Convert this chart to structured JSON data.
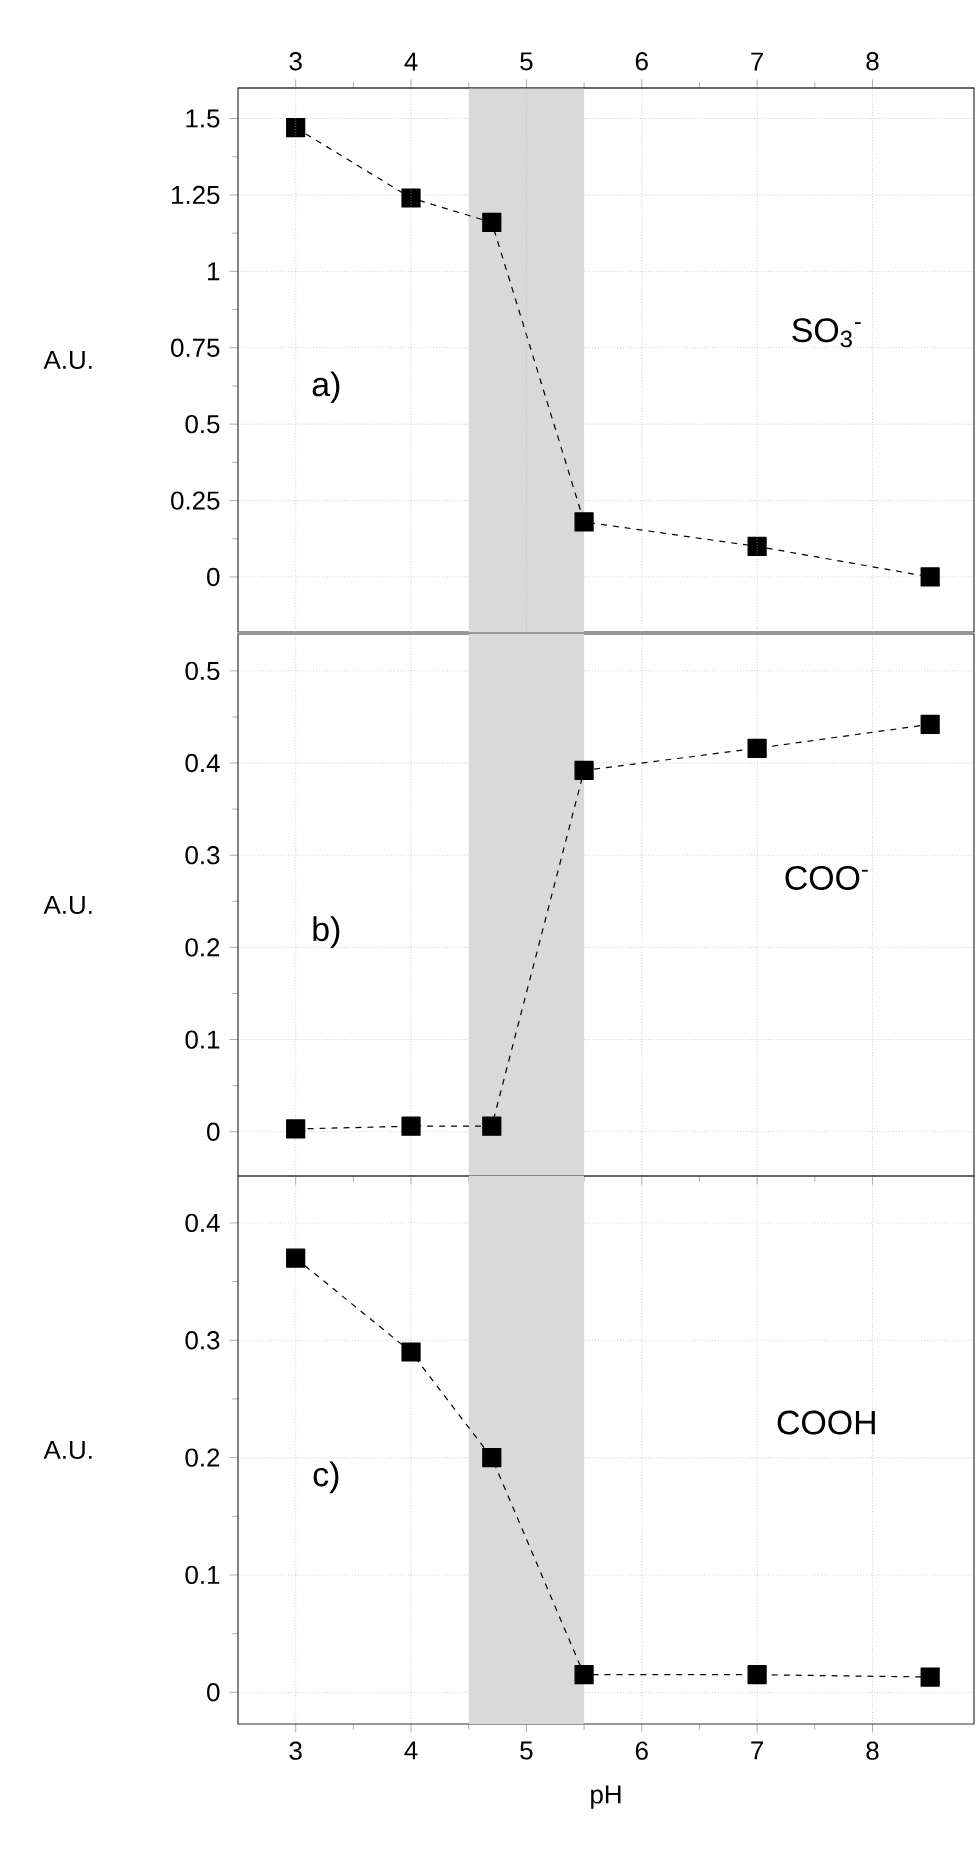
{
  "chart_data": [
    {
      "type": "line",
      "ylabel": "A.U.",
      "x": [
        3,
        4,
        4.7,
        5.5,
        7,
        8.5
      ],
      "values": [
        1.47,
        1.24,
        1.16,
        0.18,
        0.1,
        0
      ],
      "color": "#000000",
      "marker": "square",
      "line_style": "dashed",
      "grid": true,
      "xlim": [
        2.5,
        8.88
      ],
      "x2lim": [
        2.5,
        8.88
      ],
      "x2ticks": [
        3,
        4,
        5,
        6,
        7,
        8
      ],
      "ylim": [
        -0.18,
        1.6
      ],
      "yticks": [
        0,
        0.25,
        0.5,
        0.75,
        1,
        1.25,
        1.5
      ],
      "bands": [
        {
          "axis": "x",
          "from": 4.5,
          "to": 5.5,
          "color": "#d9d9d9"
        }
      ],
      "annotations": [
        "a)",
        "SO$_{3}$$^{-}$"
      ]
    },
    {
      "type": "line",
      "ylabel": "A.U.",
      "x": [
        3,
        4,
        4.7,
        5.5,
        7,
        8.5
      ],
      "values": [
        0.003,
        0.006,
        0.006,
        0.392,
        0.416,
        0.442
      ],
      "color": "#000000",
      "marker": "square",
      "line_style": "dashed",
      "grid": true,
      "xlim": [
        2.5,
        8.88
      ],
      "xticks": [
        3,
        4,
        5,
        6,
        7,
        8
      ],
      "tick_labels": "y",
      "ylim": [
        -0.048,
        0.54
      ],
      "yticks": [
        0,
        0.1,
        0.2,
        0.3,
        0.4,
        0.5
      ],
      "bands": [
        {
          "axis": "x",
          "from": 4.5,
          "to": 5.5,
          "color": "#d9d9d9"
        }
      ],
      "annotations": [
        "b)",
        "COO$^{-}$"
      ]
    },
    {
      "type": "line",
      "ylabel": "A.U.",
      "xlabel": "pH",
      "x": [
        3,
        4,
        4.7,
        5.5,
        7,
        8.5
      ],
      "values": [
        0.37,
        0.29,
        0.2,
        0.015,
        0.015,
        0.013
      ],
      "color": "#000000",
      "marker": "square",
      "line_style": "dashed",
      "grid": true,
      "xlim": [
        2.5,
        8.88
      ],
      "xticks": [
        3,
        4,
        5,
        6,
        7,
        8
      ],
      "ylim": [
        -0.027,
        0.44
      ],
      "yticks": [
        0,
        0.1,
        0.2,
        0.3,
        0.4
      ],
      "bands": [
        {
          "axis": "x",
          "from": 4.5,
          "to": 5.5,
          "color": "#d9d9d9"
        }
      ],
      "annotations": [
        "c)",
        "COOH"
      ]
    }
  ]
}
